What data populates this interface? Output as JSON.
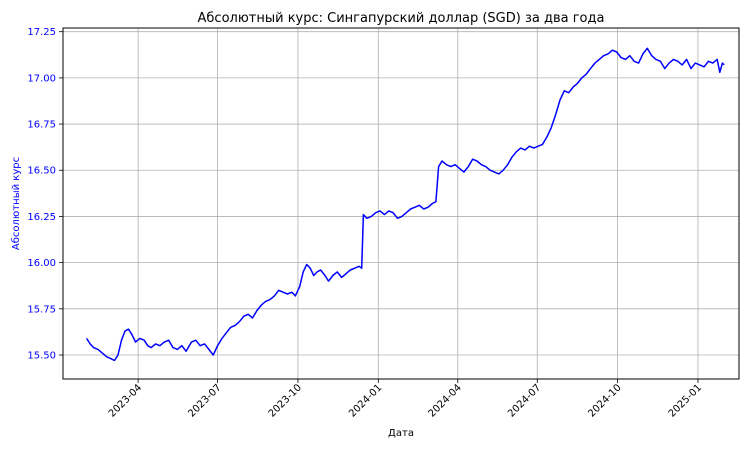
{
  "chart_data": {
    "type": "line",
    "title": "Абсолютный курс: Сингапурский доллар (SGD) за два года",
    "xlabel": "Дата",
    "ylabel": "Абсолютный курс",
    "ylim": [
      15.37,
      17.27
    ],
    "xlim": [
      "2023-01-05",
      "2025-02-17"
    ],
    "grid": true,
    "colors": {
      "line": "#0000ff",
      "ylabel": "#0000ff",
      "ytick": "#0000ff",
      "xtick": "#000000"
    },
    "x_ticks": [
      "2023-04",
      "2023-07",
      "2023-10",
      "2024-01",
      "2024-04",
      "2024-07",
      "2024-10",
      "2025-01"
    ],
    "y_ticks": [
      "15.50",
      "15.75",
      "16.00",
      "16.25",
      "16.50",
      "16.75",
      "17.00",
      "17.25"
    ],
    "series": [
      {
        "points": [
          [
            "2023-02-01",
            15.59
          ],
          [
            "2023-02-05",
            15.56
          ],
          [
            "2023-02-09",
            15.54
          ],
          [
            "2023-02-14",
            15.53
          ],
          [
            "2023-02-19",
            15.51
          ],
          [
            "2023-02-24",
            15.49
          ],
          [
            "2023-03-01",
            15.48
          ],
          [
            "2023-03-05",
            15.47
          ],
          [
            "2023-03-09",
            15.5
          ],
          [
            "2023-03-13",
            15.58
          ],
          [
            "2023-03-17",
            15.63
          ],
          [
            "2023-03-21",
            15.64
          ],
          [
            "2023-03-25",
            15.61
          ],
          [
            "2023-03-29",
            15.57
          ],
          [
            "2023-04-03",
            15.59
          ],
          [
            "2023-04-08",
            15.58
          ],
          [
            "2023-04-12",
            15.55
          ],
          [
            "2023-04-16",
            15.54
          ],
          [
            "2023-04-21",
            15.56
          ],
          [
            "2023-04-26",
            15.55
          ],
          [
            "2023-05-01",
            15.57
          ],
          [
            "2023-05-06",
            15.58
          ],
          [
            "2023-05-11",
            15.54
          ],
          [
            "2023-05-16",
            15.53
          ],
          [
            "2023-05-21",
            15.55
          ],
          [
            "2023-05-26",
            15.52
          ],
          [
            "2023-06-01",
            15.57
          ],
          [
            "2023-06-06",
            15.58
          ],
          [
            "2023-06-11",
            15.55
          ],
          [
            "2023-06-16",
            15.56
          ],
          [
            "2023-06-21",
            15.53
          ],
          [
            "2023-06-26",
            15.5
          ],
          [
            "2023-07-01",
            15.55
          ],
          [
            "2023-07-06",
            15.59
          ],
          [
            "2023-07-11",
            15.62
          ],
          [
            "2023-07-16",
            15.65
          ],
          [
            "2023-07-21",
            15.66
          ],
          [
            "2023-07-26",
            15.68
          ],
          [
            "2023-07-31",
            15.71
          ],
          [
            "2023-08-05",
            15.72
          ],
          [
            "2023-08-10",
            15.7
          ],
          [
            "2023-08-15",
            15.74
          ],
          [
            "2023-08-20",
            15.77
          ],
          [
            "2023-08-25",
            15.79
          ],
          [
            "2023-08-30",
            15.8
          ],
          [
            "2023-09-04",
            15.82
          ],
          [
            "2023-09-09",
            15.85
          ],
          [
            "2023-09-14",
            15.84
          ],
          [
            "2023-09-19",
            15.83
          ],
          [
            "2023-09-24",
            15.84
          ],
          [
            "2023-09-28",
            15.82
          ],
          [
            "2023-10-03",
            15.87
          ],
          [
            "2023-10-07",
            15.95
          ],
          [
            "2023-10-11",
            15.99
          ],
          [
            "2023-10-15",
            15.97
          ],
          [
            "2023-10-19",
            15.93
          ],
          [
            "2023-10-23",
            15.95
          ],
          [
            "2023-10-27",
            15.96
          ],
          [
            "2023-11-01",
            15.93
          ],
          [
            "2023-11-05",
            15.9
          ],
          [
            "2023-11-10",
            15.93
          ],
          [
            "2023-11-15",
            15.95
          ],
          [
            "2023-11-20",
            15.92
          ],
          [
            "2023-11-25",
            15.94
          ],
          [
            "2023-11-30",
            15.96
          ],
          [
            "2023-12-05",
            15.97
          ],
          [
            "2023-12-10",
            15.98
          ],
          [
            "2023-12-13",
            15.97
          ],
          [
            "2023-12-15",
            16.26
          ],
          [
            "2023-12-19",
            16.24
          ],
          [
            "2023-12-24",
            16.25
          ],
          [
            "2023-12-29",
            16.27
          ],
          [
            "2024-01-03",
            16.28
          ],
          [
            "2024-01-08",
            16.26
          ],
          [
            "2024-01-13",
            16.28
          ],
          [
            "2024-01-18",
            16.27
          ],
          [
            "2024-01-23",
            16.24
          ],
          [
            "2024-01-28",
            16.25
          ],
          [
            "2024-02-02",
            16.27
          ],
          [
            "2024-02-07",
            16.29
          ],
          [
            "2024-02-12",
            16.3
          ],
          [
            "2024-02-17",
            16.31
          ],
          [
            "2024-02-22",
            16.29
          ],
          [
            "2024-02-27",
            16.3
          ],
          [
            "2024-03-03",
            16.32
          ],
          [
            "2024-03-07",
            16.33
          ],
          [
            "2024-03-10",
            16.52
          ],
          [
            "2024-03-14",
            16.55
          ],
          [
            "2024-03-19",
            16.53
          ],
          [
            "2024-03-24",
            16.52
          ],
          [
            "2024-03-29",
            16.53
          ],
          [
            "2024-04-03",
            16.51
          ],
          [
            "2024-04-08",
            16.49
          ],
          [
            "2024-04-13",
            16.52
          ],
          [
            "2024-04-18",
            16.56
          ],
          [
            "2024-04-23",
            16.55
          ],
          [
            "2024-04-28",
            16.53
          ],
          [
            "2024-05-03",
            16.52
          ],
          [
            "2024-05-08",
            16.5
          ],
          [
            "2024-05-13",
            16.49
          ],
          [
            "2024-05-18",
            16.48
          ],
          [
            "2024-05-23",
            16.5
          ],
          [
            "2024-05-28",
            16.53
          ],
          [
            "2024-06-02",
            16.57
          ],
          [
            "2024-06-07",
            16.6
          ],
          [
            "2024-06-12",
            16.62
          ],
          [
            "2024-06-17",
            16.61
          ],
          [
            "2024-06-22",
            16.63
          ],
          [
            "2024-06-27",
            16.62
          ],
          [
            "2024-07-02",
            16.63
          ],
          [
            "2024-07-07",
            16.64
          ],
          [
            "2024-07-12",
            16.68
          ],
          [
            "2024-07-17",
            16.73
          ],
          [
            "2024-07-22",
            16.8
          ],
          [
            "2024-07-27",
            16.88
          ],
          [
            "2024-08-01",
            16.93
          ],
          [
            "2024-08-06",
            16.92
          ],
          [
            "2024-08-11",
            16.95
          ],
          [
            "2024-08-16",
            16.97
          ],
          [
            "2024-08-21",
            17.0
          ],
          [
            "2024-08-26",
            17.02
          ],
          [
            "2024-08-31",
            17.05
          ],
          [
            "2024-09-05",
            17.08
          ],
          [
            "2024-09-10",
            17.1
          ],
          [
            "2024-09-15",
            17.12
          ],
          [
            "2024-09-20",
            17.13
          ],
          [
            "2024-09-25",
            17.15
          ],
          [
            "2024-09-30",
            17.14
          ],
          [
            "2024-10-05",
            17.11
          ],
          [
            "2024-10-10",
            17.1
          ],
          [
            "2024-10-15",
            17.12
          ],
          [
            "2024-10-20",
            17.09
          ],
          [
            "2024-10-25",
            17.08
          ],
          [
            "2024-10-30",
            17.13
          ],
          [
            "2024-11-04",
            17.16
          ],
          [
            "2024-11-09",
            17.12
          ],
          [
            "2024-11-14",
            17.1
          ],
          [
            "2024-11-19",
            17.09
          ],
          [
            "2024-11-24",
            17.05
          ],
          [
            "2024-11-29",
            17.08
          ],
          [
            "2024-12-04",
            17.1
          ],
          [
            "2024-12-09",
            17.09
          ],
          [
            "2024-12-14",
            17.07
          ],
          [
            "2024-12-19",
            17.1
          ],
          [
            "2024-12-24",
            17.05
          ],
          [
            "2024-12-29",
            17.08
          ],
          [
            "2025-01-03",
            17.07
          ],
          [
            "2025-01-08",
            17.06
          ],
          [
            "2025-01-13",
            17.09
          ],
          [
            "2025-01-18",
            17.08
          ],
          [
            "2025-01-23",
            17.1
          ],
          [
            "2025-01-26",
            17.03
          ],
          [
            "2025-01-29",
            17.08
          ],
          [
            "2025-01-31",
            17.07
          ]
        ]
      }
    ]
  }
}
